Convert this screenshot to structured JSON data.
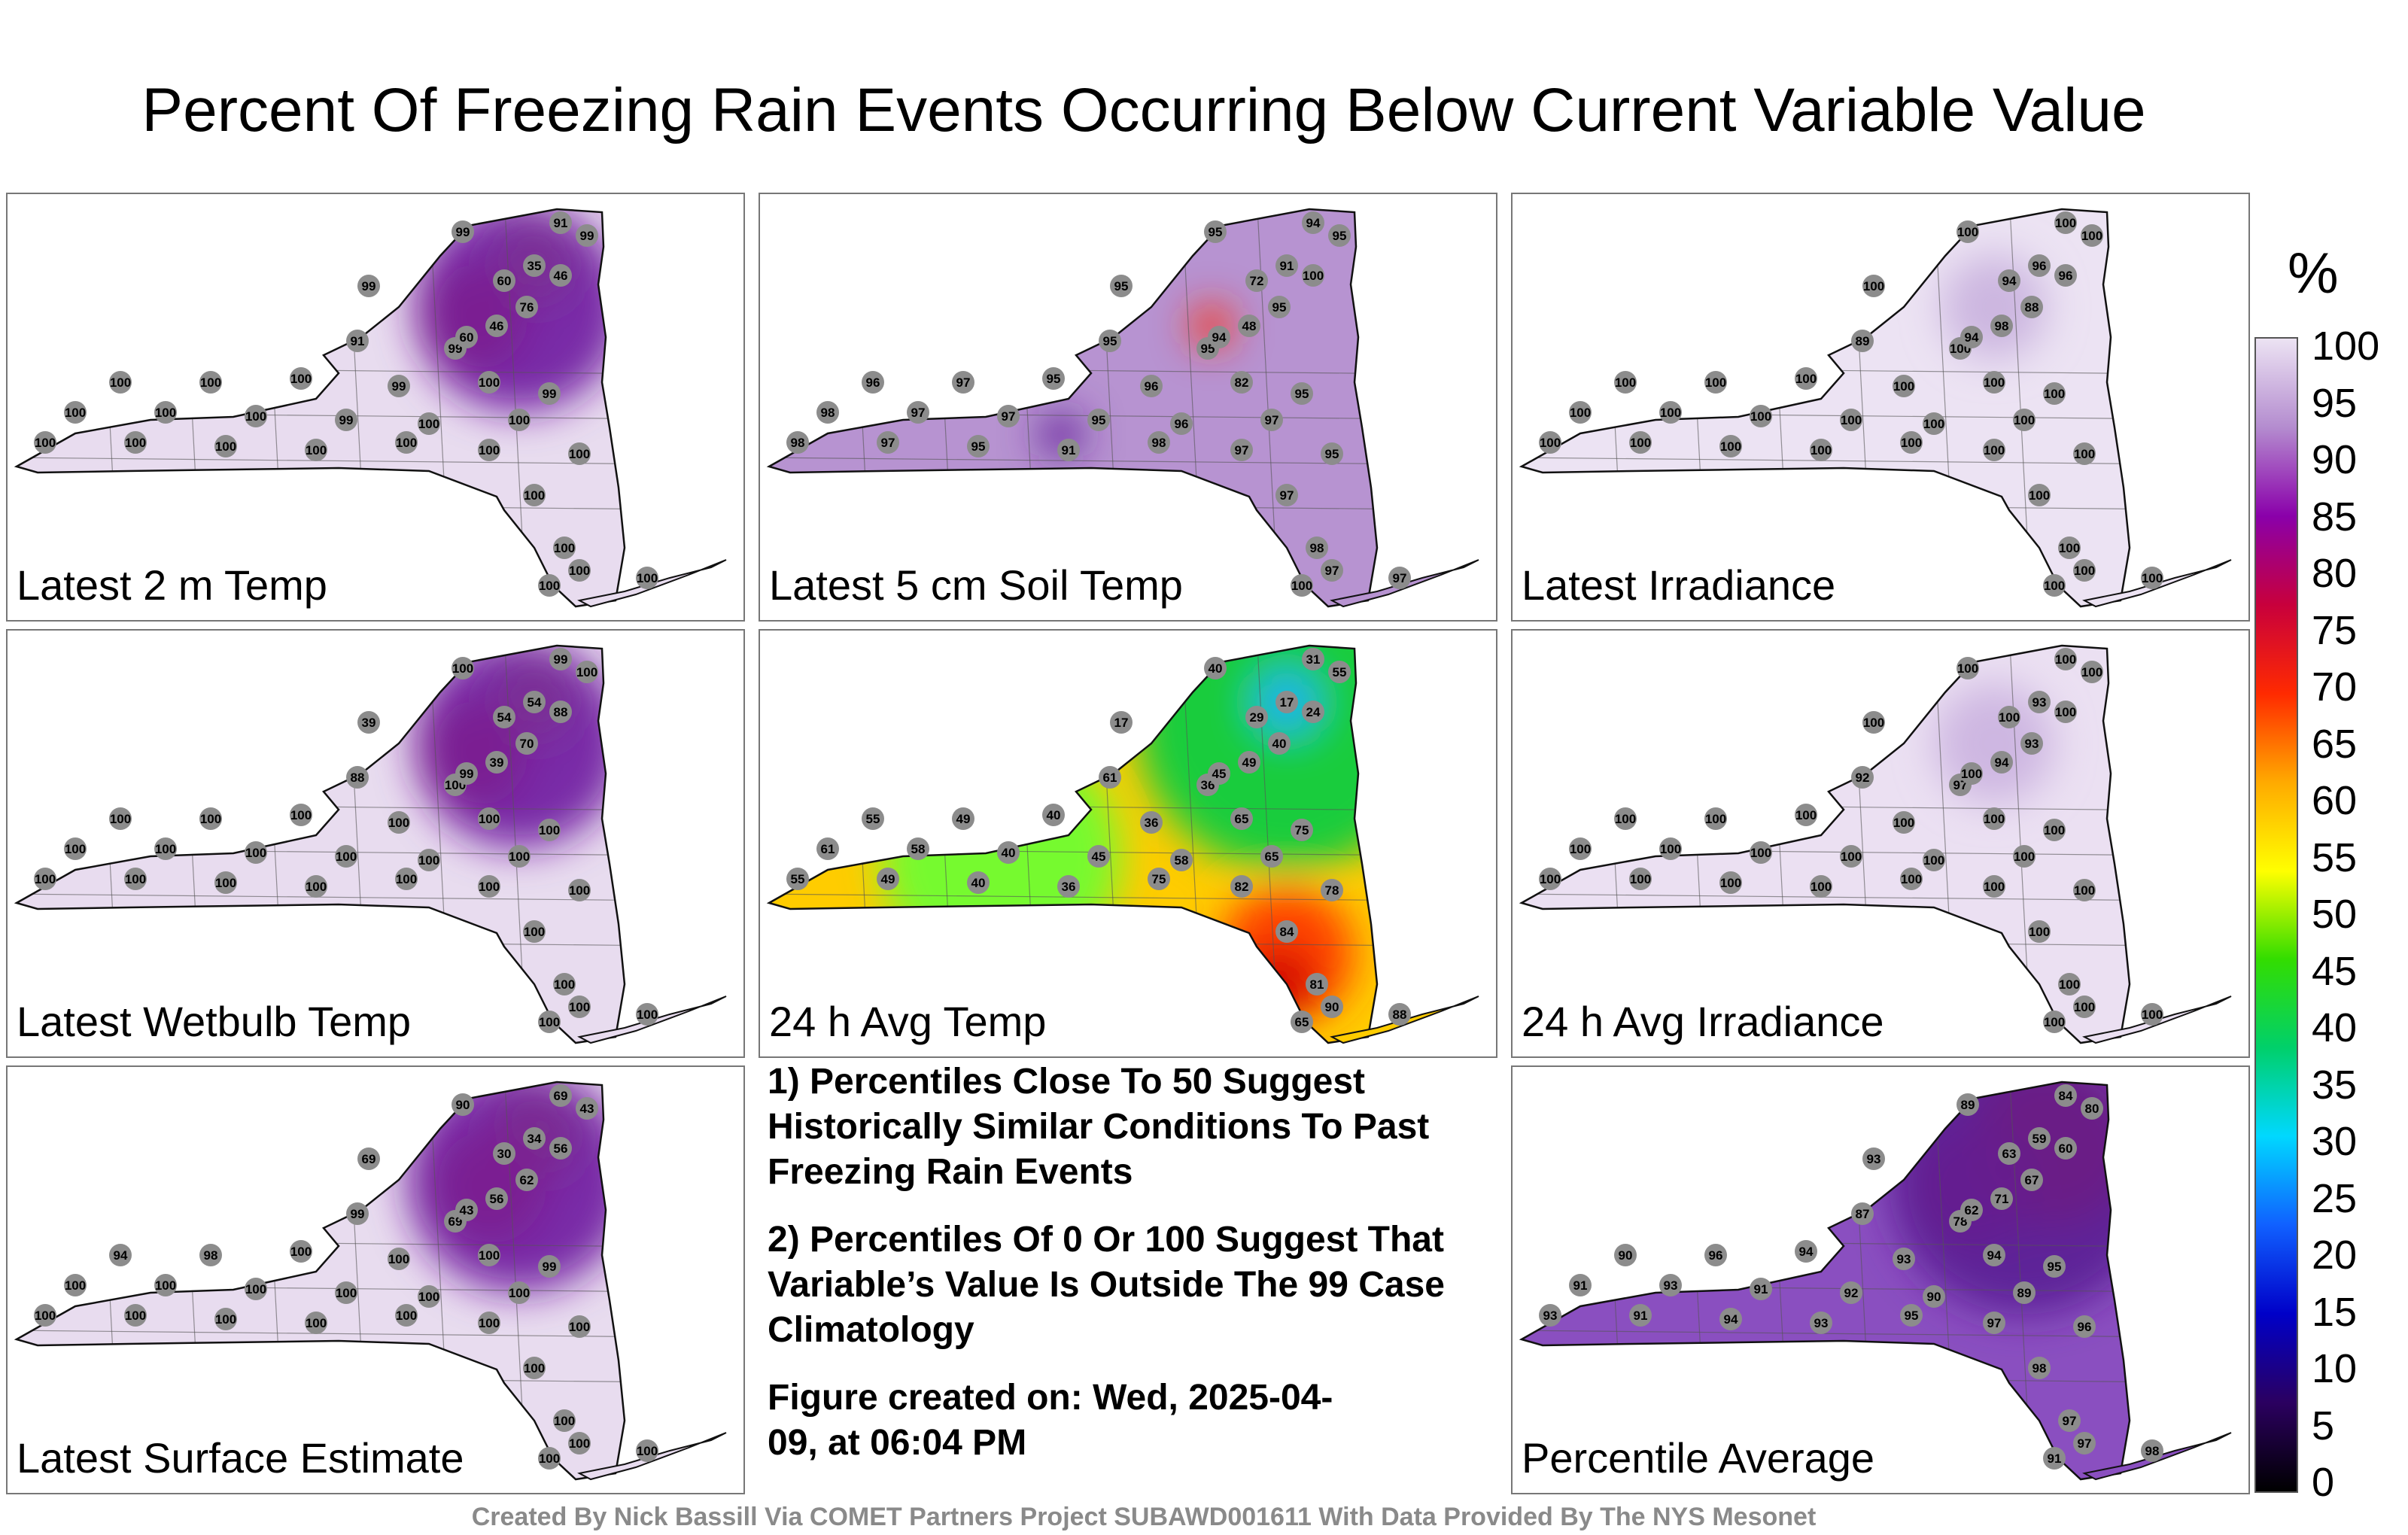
{
  "title": "Percent Of Freezing Rain Events Occurring Below Current Variable Value",
  "panels": [
    {
      "label": "Latest 2 m Temp",
      "base": "#e8dcef",
      "blobs": [
        {
          "c": "#ffff33"
        },
        {
          "c": "#ff2a00"
        },
        {
          "c": "#6d1aa0"
        }
      ],
      "values": [
        "99",
        "91",
        "99",
        "99",
        "35",
        "46",
        "60",
        "76",
        "46",
        "99",
        "60",
        "91",
        "100",
        "100",
        "100",
        "99",
        "100",
        "99",
        "100",
        "100",
        "100",
        "99",
        "100",
        "100",
        "100",
        "100",
        "100",
        "100",
        "100",
        "100",
        "100",
        "100",
        "100",
        "100",
        "100",
        "100"
      ]
    },
    {
      "label": "Latest 5 cm Soil Temp",
      "base": "#b793d1",
      "blobs": [
        {
          "c": "#ff2a00"
        },
        {
          "c": "#5e1d96"
        }
      ],
      "values": [
        "95",
        "94",
        "95",
        "95",
        "91",
        "100",
        "72",
        "95",
        "48",
        "95",
        "94",
        "95",
        "96",
        "97",
        "95",
        "96",
        "82",
        "95",
        "98",
        "97",
        "97",
        "95",
        "96",
        "97",
        "98",
        "97",
        "95",
        "91",
        "98",
        "97",
        "95",
        "97",
        "98",
        "97",
        "97",
        "100"
      ]
    },
    {
      "label": "Latest Irradiance",
      "base": "#ece3f3",
      "blobs": [
        {
          "c": "#c9b1de"
        }
      ],
      "values": [
        "100",
        "100",
        "100",
        "100",
        "96",
        "96",
        "94",
        "88",
        "98",
        "100",
        "94",
        "89",
        "100",
        "100",
        "100",
        "100",
        "100",
        "100",
        "100",
        "100",
        "100",
        "100",
        "100",
        "100",
        "100",
        "100",
        "100",
        "100",
        "100",
        "100",
        "100",
        "100",
        "100",
        "100",
        "100",
        "100"
      ]
    },
    {
      "label": "Latest Wetbulb Temp",
      "base": "#e8dcef",
      "blobs": [
        {
          "c": "#ffff33"
        },
        {
          "c": "#ff2a00"
        },
        {
          "c": "#6d1aa0"
        }
      ],
      "values": [
        "100",
        "99",
        "100",
        "39",
        "54",
        "88",
        "54",
        "70",
        "39",
        "100",
        "99",
        "88",
        "100",
        "100",
        "100",
        "100",
        "100",
        "100",
        "100",
        "100",
        "100",
        "100",
        "100",
        "100",
        "100",
        "100",
        "100",
        "100",
        "100",
        "100",
        "100",
        "100",
        "100",
        "100",
        "100",
        "100"
      ]
    },
    {
      "label": "24 h Avg Temp",
      "base": "#ffcc00",
      "blobs": [
        {
          "c": "#00cc44"
        },
        {
          "c": "#66ff33"
        },
        {
          "c": "#ff3300"
        },
        {
          "c": "#1fb3ff"
        },
        {
          "c": "#cc0000"
        }
      ],
      "values": [
        "40",
        "31",
        "55",
        "17",
        "17",
        "24",
        "29",
        "40",
        "49",
        "36",
        "45",
        "61",
        "55",
        "49",
        "40",
        "36",
        "65",
        "75",
        "61",
        "58",
        "40",
        "45",
        "58",
        "65",
        "55",
        "49",
        "40",
        "36",
        "75",
        "82",
        "78",
        "84",
        "81",
        "90",
        "88",
        "65"
      ]
    },
    {
      "label": "24 h Avg Irradiance",
      "base": "#ebe0f2",
      "blobs": [
        {
          "c": "#cbb3e0"
        }
      ],
      "values": [
        "100",
        "100",
        "100",
        "100",
        "93",
        "100",
        "100",
        "93",
        "94",
        "97",
        "100",
        "92",
        "100",
        "100",
        "100",
        "100",
        "100",
        "100",
        "100",
        "100",
        "100",
        "100",
        "100",
        "100",
        "100",
        "100",
        "100",
        "100",
        "100",
        "100",
        "100",
        "100",
        "100",
        "100",
        "100",
        "100"
      ]
    },
    {
      "label": "Latest Surface Estimate",
      "base": "#e8dcef",
      "blobs": [
        {
          "c": "#ffcc00"
        },
        {
          "c": "#ff2a00"
        },
        {
          "c": "#6d1aa0"
        }
      ],
      "values": [
        "90",
        "69",
        "43",
        "69",
        "34",
        "56",
        "30",
        "62",
        "56",
        "69",
        "43",
        "99",
        "94",
        "98",
        "100",
        "100",
        "100",
        "99",
        "100",
        "100",
        "100",
        "100",
        "100",
        "100",
        "100",
        "100",
        "100",
        "100",
        "100",
        "100",
        "100",
        "100",
        "100",
        "100",
        "100",
        "100"
      ]
    },
    {
      "label": "Percentile Average",
      "base": "#8a4fc0",
      "blobs": [
        {
          "c": "#ff1e00"
        },
        {
          "c": "#cc0066"
        },
        {
          "c": "#5a1f93"
        }
      ],
      "values": [
        "89",
        "84",
        "80",
        "93",
        "59",
        "60",
        "63",
        "67",
        "71",
        "78",
        "62",
        "87",
        "90",
        "96",
        "94",
        "93",
        "94",
        "95",
        "91",
        "93",
        "91",
        "92",
        "90",
        "89",
        "93",
        "91",
        "94",
        "93",
        "95",
        "97",
        "96",
        "98",
        "97",
        "97",
        "98",
        "91"
      ]
    }
  ],
  "notes": [
    "1) Percentiles Close To 50 Suggest Historically Similar Conditions To Past Freezing Rain Events",
    "2) Percentiles Of 0 Or 100 Suggest That Variable’s Value Is Outside The 99 Case Climatology",
    "Figure created on: Wed, 2025-04-09, at 06:04 PM"
  ],
  "colorbar": {
    "unit": "%",
    "ticks": [
      "100",
      "95",
      "90",
      "85",
      "80",
      "75",
      "70",
      "65",
      "60",
      "55",
      "50",
      "45",
      "40",
      "35",
      "30",
      "25",
      "20",
      "15",
      "10",
      "5",
      "0"
    ],
    "min": 0,
    "max": 100,
    "colors": [
      "#000000",
      "#2b0060",
      "#0000c8",
      "#1060ff",
      "#00d8ff",
      "#00d06a",
      "#33dd00",
      "#ffff00",
      "#ffaa00",
      "#ff2a00",
      "#c8003c",
      "#8a00aa",
      "#b48ccf",
      "#ece3f3"
    ]
  },
  "credit": "Created By Nick Bassill Via COMET Partners Project SUBAWD001611 With Data Provided By The NYS Mesonet"
}
